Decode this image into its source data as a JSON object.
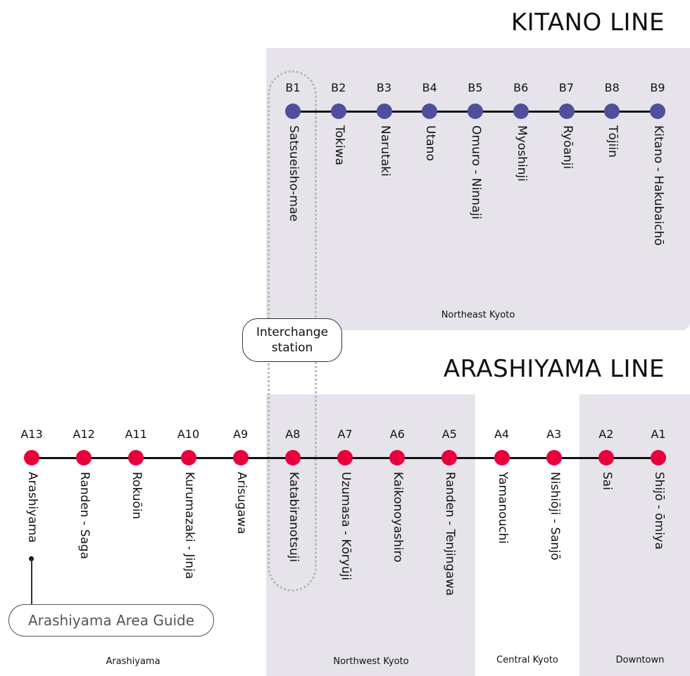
{
  "kitano": {
    "title": "KITANO LINE",
    "color": "#4f4f9d",
    "region": "Northeast Kyoto",
    "stations": [
      {
        "code": "B1",
        "name": "Satsueisho-mae"
      },
      {
        "code": "B2",
        "name": "Tokiwa"
      },
      {
        "code": "B3",
        "name": "Narutaki"
      },
      {
        "code": "B4",
        "name": "Utano"
      },
      {
        "code": "B5",
        "name": "Omuro - Ninnaji"
      },
      {
        "code": "B6",
        "name": "Myoshinji"
      },
      {
        "code": "B7",
        "name": "Ryōanji"
      },
      {
        "code": "B8",
        "name": "Tōjiin"
      },
      {
        "code": "B9",
        "name": "Kitano - Hakubaichō"
      }
    ]
  },
  "arashiyama": {
    "title": "ARASHIYAMA LINE",
    "color": "#e8003c",
    "regions": [
      "Arashiyama",
      "Northwest Kyoto",
      "Central Kyoto",
      "Downtown"
    ],
    "stations": [
      {
        "code": "A13",
        "name": "Arashiyama"
      },
      {
        "code": "A12",
        "name": "Randen - Saga"
      },
      {
        "code": "A11",
        "name": "Rokuōin"
      },
      {
        "code": "A10",
        "name": "Kurumazaki - Jinja"
      },
      {
        "code": "A9",
        "name": "Arisugawa"
      },
      {
        "code": "A8",
        "name": "Katabiranotsuji"
      },
      {
        "code": "A7",
        "name": "Uzumasa - Kōryūji"
      },
      {
        "code": "A6",
        "name": "Kaikonoyashiro"
      },
      {
        "code": "A5",
        "name": "Randen - Tenjingawa"
      },
      {
        "code": "A4",
        "name": "Yamanouchi"
      },
      {
        "code": "A3",
        "name": "Nishiōji - Sanjō"
      },
      {
        "code": "A2",
        "name": "Sai"
      },
      {
        "code": "A1",
        "name": "Shijō - ōmiya"
      }
    ]
  },
  "interchange": {
    "line1": "Interchange",
    "line2": "station"
  },
  "guide": {
    "label": "Arashiyama Area Guide"
  }
}
